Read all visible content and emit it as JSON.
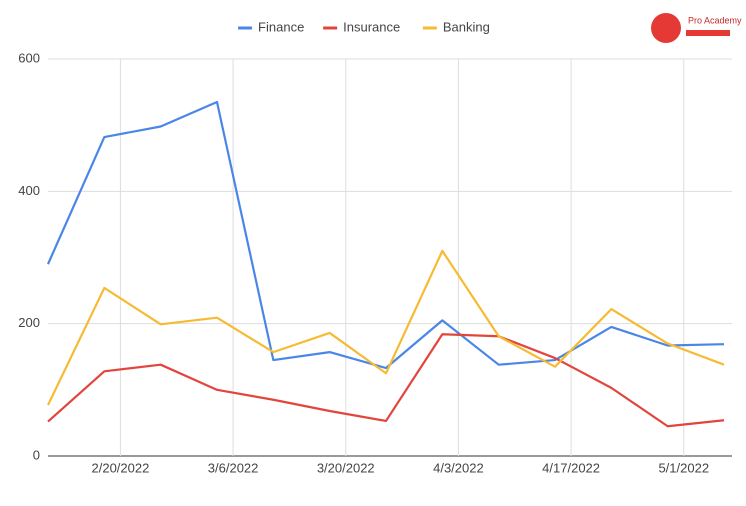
{
  "chart_data": {
    "type": "line",
    "x": [
      "2/11/2022",
      "2/18/2022",
      "2/25/2022",
      "3/4/2022",
      "3/11/2022",
      "3/18/2022",
      "3/25/2022",
      "4/1/2022",
      "4/8/2022",
      "4/15/2022",
      "4/22/2022",
      "4/29/2022",
      "5/6/2022"
    ],
    "series": [
      {
        "name": "Finance",
        "color": "#4a86e8",
        "values": [
          290,
          482,
          498,
          535,
          145,
          157,
          133,
          205,
          138,
          145,
          195,
          167,
          169
        ]
      },
      {
        "name": "Insurance",
        "color": "#e2453c",
        "values": [
          52,
          128,
          138,
          100,
          85,
          68,
          53,
          184,
          181,
          148,
          103,
          45,
          54
        ]
      },
      {
        "name": "Banking",
        "color": "#f6bb33",
        "values": [
          77,
          254,
          199,
          209,
          157,
          186,
          125,
          310,
          181,
          135,
          222,
          170,
          138
        ]
      }
    ],
    "xlim": [
      "2/11/2022",
      "5/6/2022"
    ],
    "xticks": [
      "2/20/2022",
      "3/6/2022",
      "3/20/2022",
      "4/3/2022",
      "4/17/2022",
      "5/1/2022"
    ],
    "ylim": [
      0,
      600
    ],
    "yticks": [
      0,
      200,
      400,
      600
    ],
    "grid": true,
    "legend": "top",
    "logo": "Pro Academy"
  }
}
